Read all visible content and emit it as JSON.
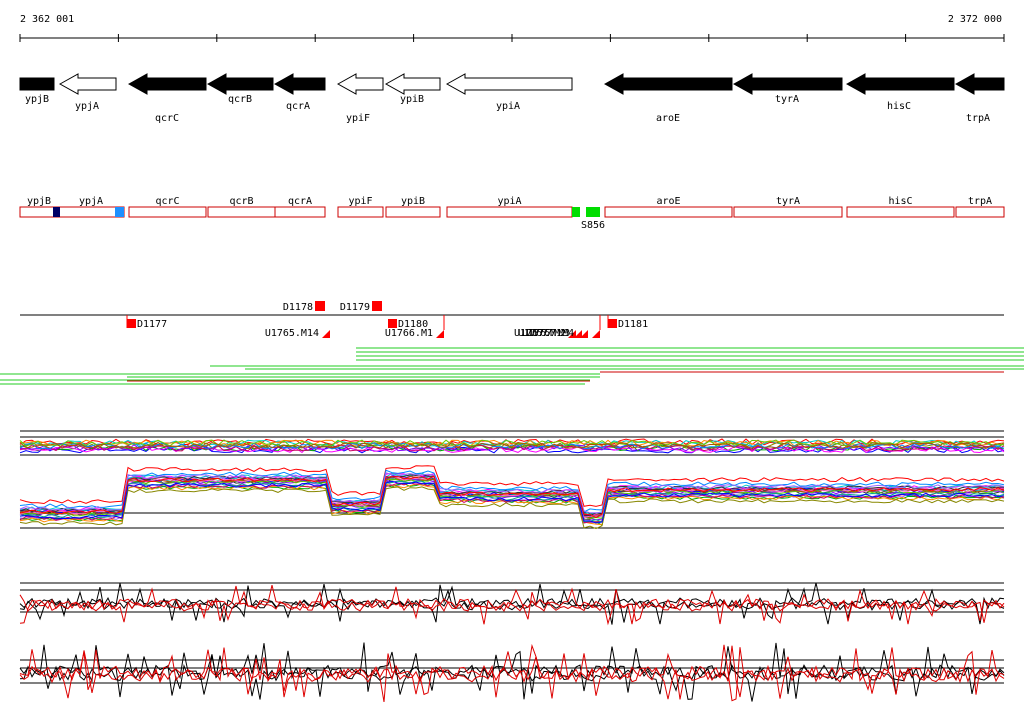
{
  "coordinates": {
    "start": "2 362 001",
    "end": "2 372 000"
  },
  "genes": [
    {
      "name": "ypjB",
      "strand": "-",
      "filled": true
    },
    {
      "name": "ypjA",
      "strand": "-",
      "filled": false
    },
    {
      "name": "qcrC",
      "strand": "-",
      "filled": true
    },
    {
      "name": "qcrB",
      "strand": "-",
      "filled": true
    },
    {
      "name": "qcrA",
      "strand": "-",
      "filled": true
    },
    {
      "name": "ypiF",
      "strand": "-",
      "filled": false
    },
    {
      "name": "ypiB",
      "strand": "-",
      "filled": false
    },
    {
      "name": "ypiA",
      "strand": "-",
      "filled": false
    },
    {
      "name": "aroE",
      "strand": "-",
      "filled": true
    },
    {
      "name": "tyrA",
      "strand": "-",
      "filled": true
    },
    {
      "name": "hisC",
      "strand": "-",
      "filled": true
    },
    {
      "name": "trpA",
      "strand": "-",
      "filled": true
    }
  ],
  "segments": {
    "labels": [
      "ypjB",
      "ypjA",
      "qcrC",
      "qcrB",
      "qcrA",
      "ypiF",
      "ypiB",
      "ypiA",
      "aroE",
      "tyrA",
      "hisC",
      "trpA"
    ],
    "marker_label": "S856"
  },
  "features": {
    "above": [
      "D1178",
      "D1179"
    ],
    "below": [
      "D1177",
      "D1180",
      "D1181"
    ],
    "triangles": [
      "U1765.M14",
      "U1766.M1",
      "U1767.M1",
      "U1767.M2",
      "U1767.M3",
      "U1767.M4"
    ]
  },
  "colors": {
    "gene_fill": "#000000",
    "segment_outline": "#cc0000",
    "feature_red": "#ff0000",
    "coverage_green": "#22cc22",
    "coverage_red": "#cc0000",
    "marker_navy": "#000066",
    "marker_blue": "#1e90ff",
    "marker_green": "#00dd00",
    "profile_black": "#000000",
    "profile_red": "#dd0000"
  }
}
